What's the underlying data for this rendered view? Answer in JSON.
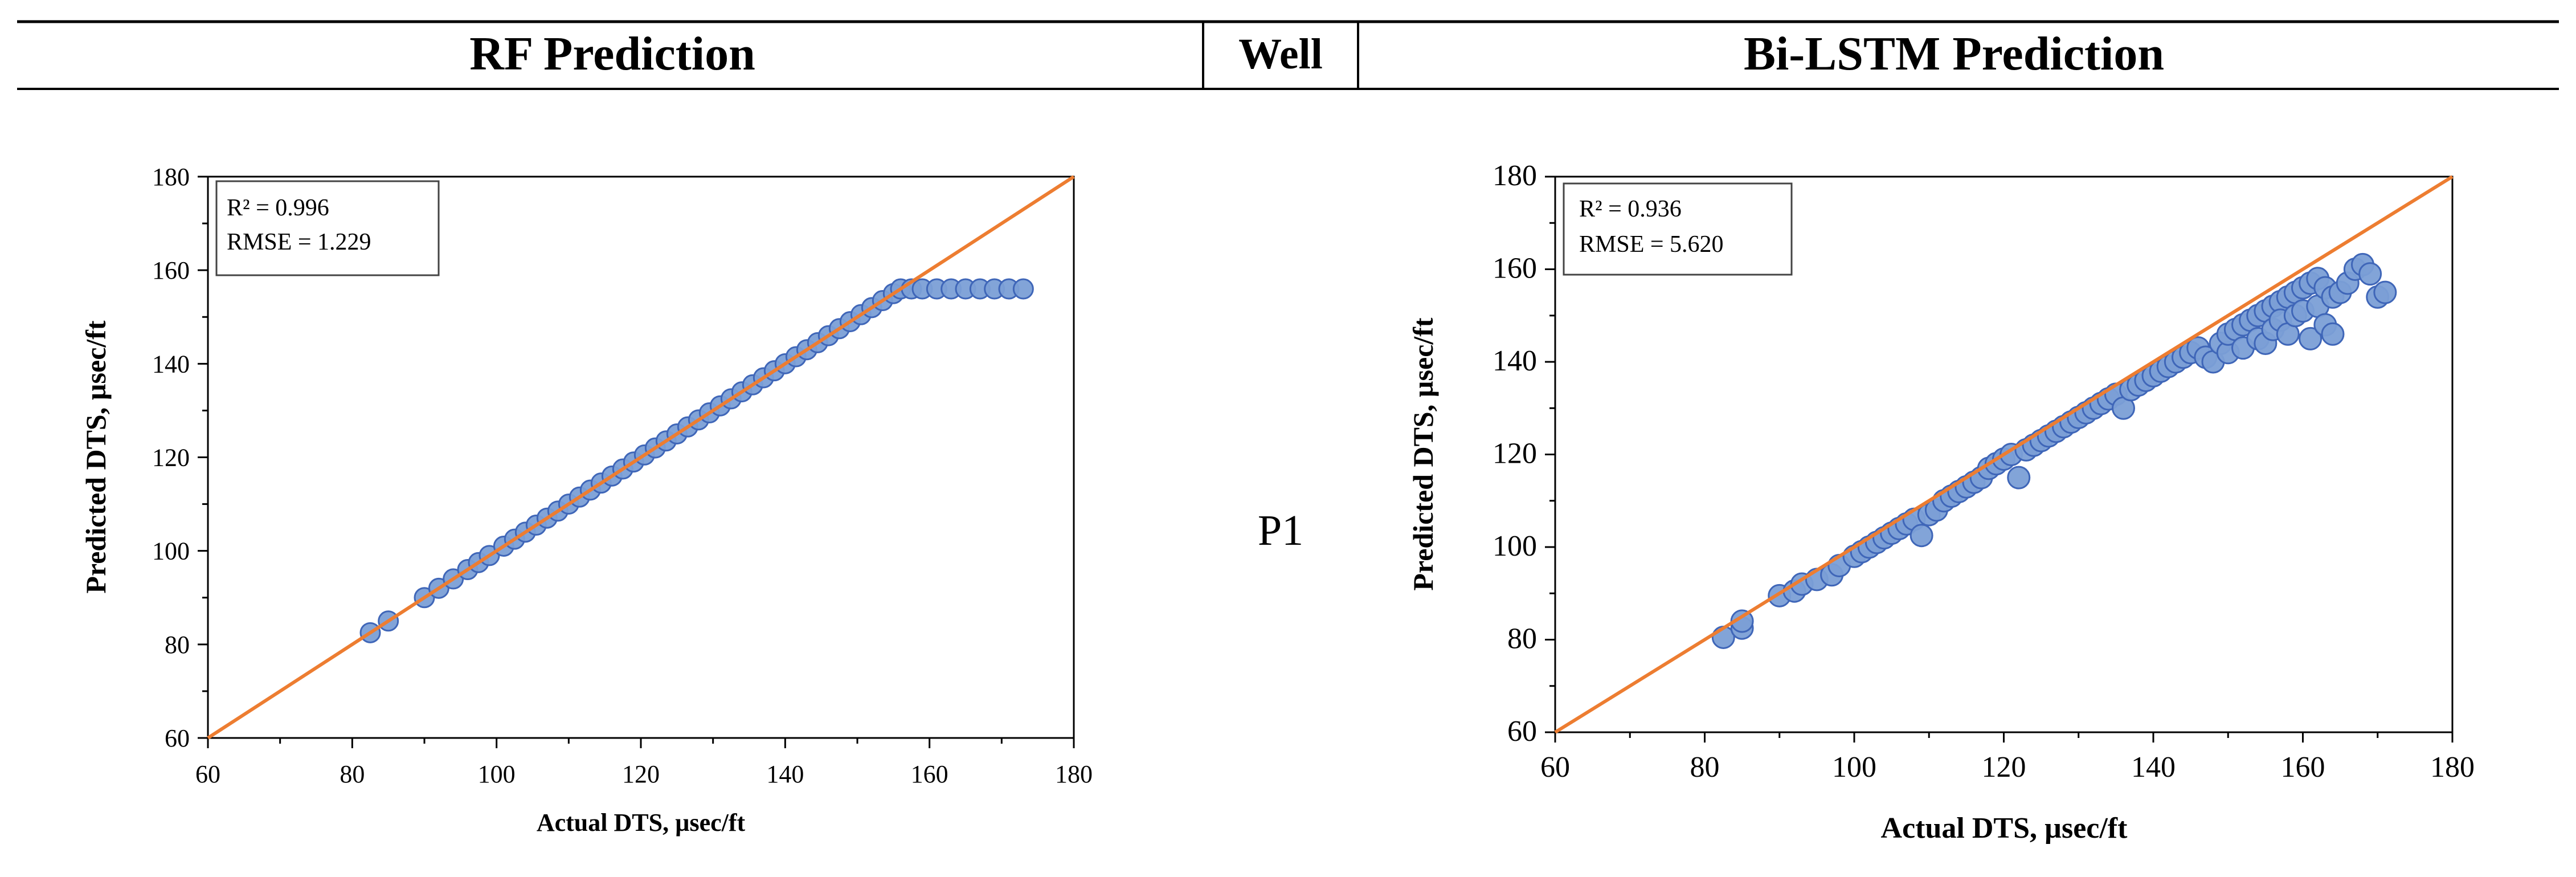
{
  "header": {
    "left_title": "RF Prediction",
    "middle_title": "Well",
    "right_title": "Bi-LSTM Prediction"
  },
  "well_label": "P1",
  "chart_data": [
    {
      "type": "scatter",
      "title": "RF Prediction",
      "xlabel": "Actual DTS, µsec/ft",
      "ylabel": "Predicted DTS, µsec/ft",
      "xlim": [
        60,
        180
      ],
      "ylim": [
        60,
        180
      ],
      "xticks": [
        "60",
        "80",
        "100",
        "120",
        "140",
        "160",
        "180"
      ],
      "yticks": [
        "60",
        "80",
        "100",
        "120",
        "140",
        "160",
        "180"
      ],
      "annotation": {
        "r2": "R² = 0.996",
        "rmse": "RMSE = 1.229"
      },
      "marker_color": "#7b9fd6",
      "marker_edge": "#3f66b8",
      "line_color": "#ed7d31",
      "reference_line": [
        [
          60,
          60
        ],
        [
          180,
          180
        ]
      ],
      "points": [
        [
          82.5,
          82.5
        ],
        [
          85,
          85
        ],
        [
          90,
          90
        ],
        [
          92,
          92
        ],
        [
          94,
          94
        ],
        [
          96,
          96
        ],
        [
          97.5,
          97.5
        ],
        [
          99,
          99
        ],
        [
          101,
          101
        ],
        [
          102.5,
          102.5
        ],
        [
          104,
          104
        ],
        [
          105.5,
          105.5
        ],
        [
          107,
          107
        ],
        [
          108.5,
          108.5
        ],
        [
          110,
          110
        ],
        [
          111.5,
          111.5
        ],
        [
          113,
          113
        ],
        [
          114.5,
          114.5
        ],
        [
          116,
          116
        ],
        [
          117.5,
          117.5
        ],
        [
          119,
          119
        ],
        [
          120.5,
          120.5
        ],
        [
          122,
          122
        ],
        [
          123.5,
          123.5
        ],
        [
          125,
          125
        ],
        [
          126.5,
          126.5
        ],
        [
          128,
          128
        ],
        [
          129.5,
          129.5
        ],
        [
          131,
          131
        ],
        [
          132.5,
          132.5
        ],
        [
          134,
          134
        ],
        [
          135.5,
          135.5
        ],
        [
          137,
          137
        ],
        [
          138.5,
          138.5
        ],
        [
          140,
          140
        ],
        [
          141.5,
          141.5
        ],
        [
          143,
          143
        ],
        [
          144.5,
          144.5
        ],
        [
          146,
          146
        ],
        [
          147.5,
          147.5
        ],
        [
          149,
          149
        ],
        [
          150.5,
          150.5
        ],
        [
          152,
          152
        ],
        [
          153.5,
          153.5
        ],
        [
          155,
          155
        ],
        [
          156,
          156
        ],
        [
          157.5,
          156
        ],
        [
          159,
          156
        ],
        [
          161,
          156
        ],
        [
          163,
          156
        ],
        [
          165,
          156
        ],
        [
          167,
          156
        ],
        [
          169,
          156
        ],
        [
          171,
          156
        ],
        [
          173,
          156
        ]
      ]
    },
    {
      "type": "scatter",
      "title": "Bi-LSTM Prediction",
      "xlabel": "Actual DTS, µsec/ft",
      "ylabel": "Predicted DTS, µsec/ft",
      "xlim": [
        60,
        180
      ],
      "ylim": [
        60,
        180
      ],
      "xticks": [
        "60",
        "80",
        "100",
        "120",
        "140",
        "160",
        "180"
      ],
      "yticks": [
        "60",
        "80",
        "100",
        "120",
        "140",
        "160",
        "180"
      ],
      "annotation": {
        "r2": "R² = 0.936",
        "rmse": "RMSE = 5.620"
      },
      "marker_color": "#7b9fd6",
      "marker_edge": "#3f66b8",
      "line_color": "#ed7d31",
      "reference_line": [
        [
          60,
          60
        ],
        [
          180,
          180
        ]
      ],
      "points": [
        [
          82.5,
          80.5
        ],
        [
          85,
          82.5
        ],
        [
          85,
          84
        ],
        [
          90,
          89.5
        ],
        [
          92,
          90.5
        ],
        [
          93,
          92
        ],
        [
          95,
          93
        ],
        [
          97,
          94
        ],
        [
          98,
          96
        ],
        [
          100,
          98
        ],
        [
          101,
          99
        ],
        [
          102,
          100
        ],
        [
          103,
          101
        ],
        [
          104,
          102
        ],
        [
          105,
          103
        ],
        [
          106,
          104
        ],
        [
          107,
          105
        ],
        [
          108,
          106
        ],
        [
          109,
          102.5
        ],
        [
          110,
          107
        ],
        [
          111,
          108
        ],
        [
          112,
          110
        ],
        [
          113,
          111
        ],
        [
          114,
          112
        ],
        [
          115,
          113
        ],
        [
          116,
          114
        ],
        [
          117,
          115
        ],
        [
          118,
          117
        ],
        [
          119,
          118
        ],
        [
          120,
          119
        ],
        [
          121,
          120
        ],
        [
          122,
          115
        ],
        [
          123,
          121
        ],
        [
          124,
          122
        ],
        [
          125,
          123
        ],
        [
          126,
          124
        ],
        [
          127,
          125
        ],
        [
          128,
          126
        ],
        [
          129,
          127
        ],
        [
          130,
          128
        ],
        [
          131,
          129
        ],
        [
          132,
          130
        ],
        [
          133,
          131
        ],
        [
          134,
          132
        ],
        [
          135,
          133
        ],
        [
          136,
          130
        ],
        [
          137,
          134
        ],
        [
          138,
          135
        ],
        [
          139,
          136
        ],
        [
          140,
          137
        ],
        [
          141,
          138
        ],
        [
          142,
          139
        ],
        [
          143,
          140
        ],
        [
          144,
          141
        ],
        [
          145,
          142
        ],
        [
          146,
          143
        ],
        [
          147,
          141
        ],
        [
          148,
          140
        ],
        [
          149,
          144
        ],
        [
          150,
          142
        ],
        [
          150,
          146
        ],
        [
          151,
          147
        ],
        [
          152,
          143
        ],
        [
          152,
          148
        ],
        [
          153,
          149
        ],
        [
          154,
          145
        ],
        [
          154,
          150
        ],
        [
          155,
          151
        ],
        [
          155,
          144
        ],
        [
          156,
          152
        ],
        [
          156,
          147
        ],
        [
          157,
          153
        ],
        [
          157,
          149
        ],
        [
          158,
          154
        ],
        [
          158,
          146
        ],
        [
          159,
          155
        ],
        [
          159,
          150
        ],
        [
          160,
          156
        ],
        [
          160,
          151
        ],
        [
          161,
          157
        ],
        [
          161,
          145
        ],
        [
          162,
          158
        ],
        [
          162,
          152
        ],
        [
          163,
          156
        ],
        [
          163,
          148
        ],
        [
          164,
          154
        ],
        [
          164,
          146
        ],
        [
          165,
          155
        ],
        [
          166,
          157
        ],
        [
          167,
          160
        ],
        [
          168,
          161
        ],
        [
          169,
          159
        ],
        [
          170,
          154
        ],
        [
          171,
          155
        ]
      ]
    }
  ]
}
